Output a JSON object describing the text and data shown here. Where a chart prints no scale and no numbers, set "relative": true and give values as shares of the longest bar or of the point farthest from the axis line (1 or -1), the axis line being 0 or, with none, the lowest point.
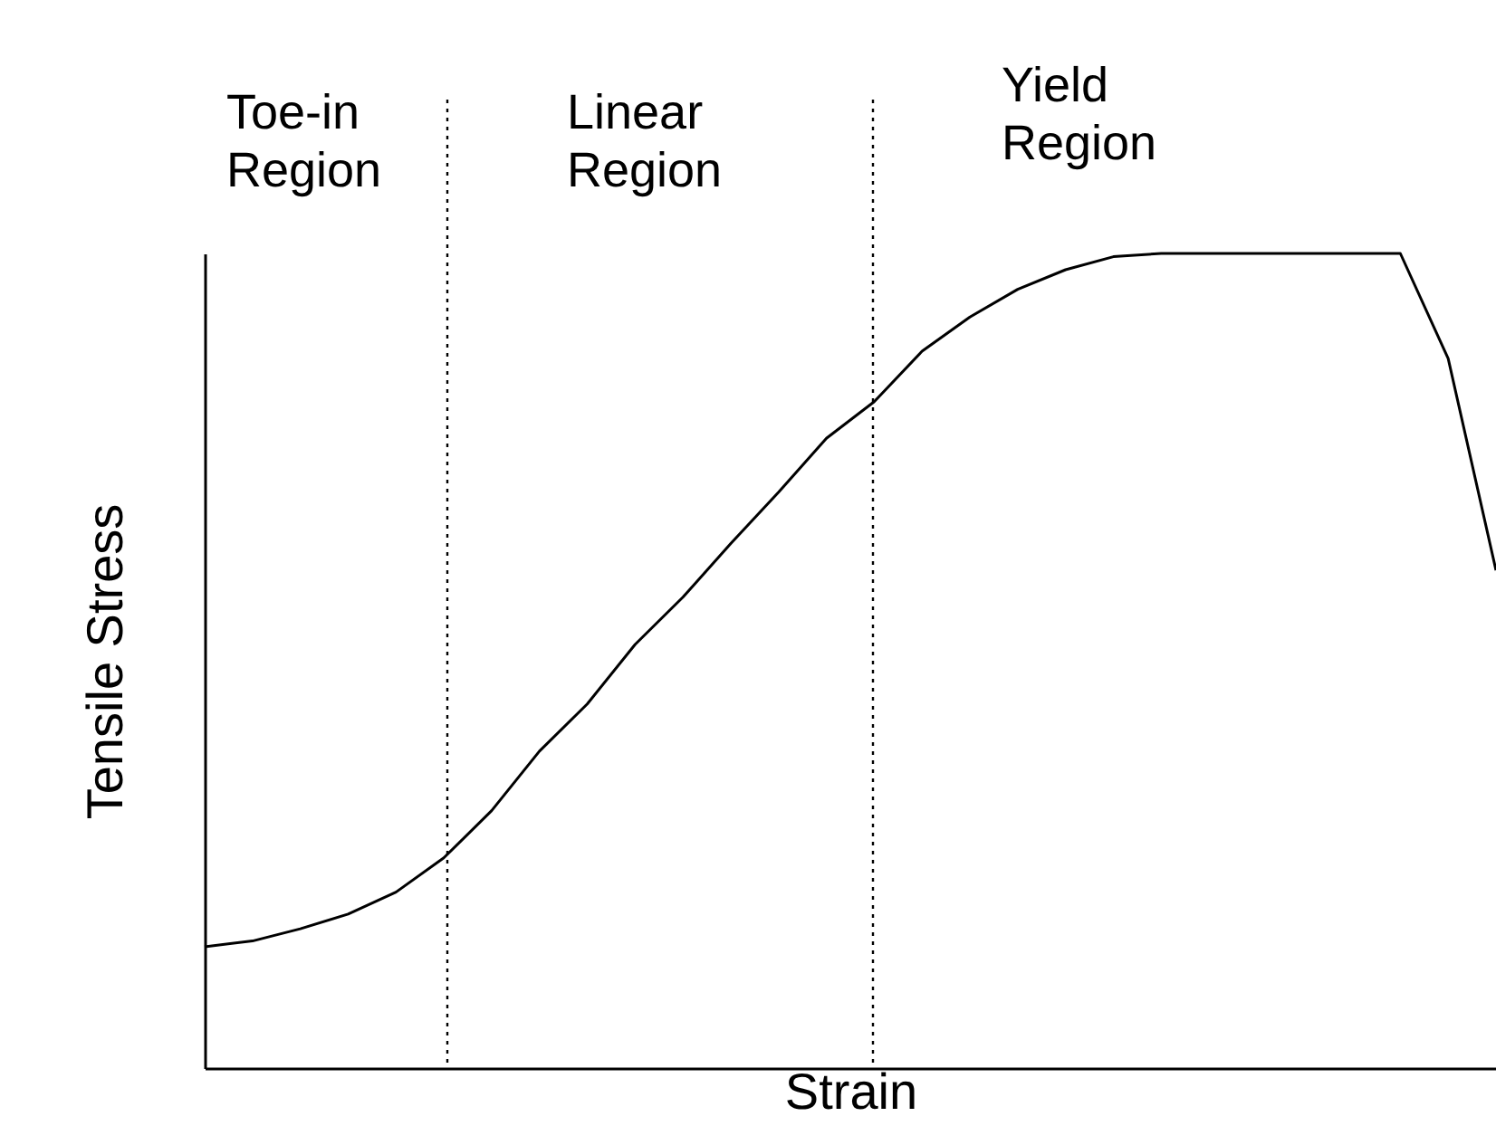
{
  "chart_data": {
    "type": "line",
    "relative": true,
    "xlabel": "Strain",
    "ylabel": "Tensile Stress",
    "grid": false,
    "marker": "none",
    "line_style": "solid",
    "categories": [
      null,
      null,
      null,
      null,
      null,
      null,
      null,
      null,
      null,
      null,
      null,
      null,
      null,
      null,
      null,
      null,
      null,
      null,
      null,
      null,
      null,
      null,
      null,
      null,
      null,
      null,
      null,
      null
    ],
    "series": [
      {
        "color": "#000000",
        "values": [
          0.149,
          0.156,
          0.171,
          0.189,
          0.216,
          0.258,
          0.316,
          0.389,
          0.447,
          0.52,
          0.578,
          0.644,
          0.707,
          0.773,
          0.818,
          0.88,
          0.922,
          0.956,
          0.98,
          0.996,
          1,
          1,
          1,
          1,
          1,
          1,
          0.871,
          0.611
        ]
      }
    ],
    "annotations": [
      "Toe-in\nRegion",
      "Linear\nRegion",
      "Yield\nRegion"
    ]
  }
}
